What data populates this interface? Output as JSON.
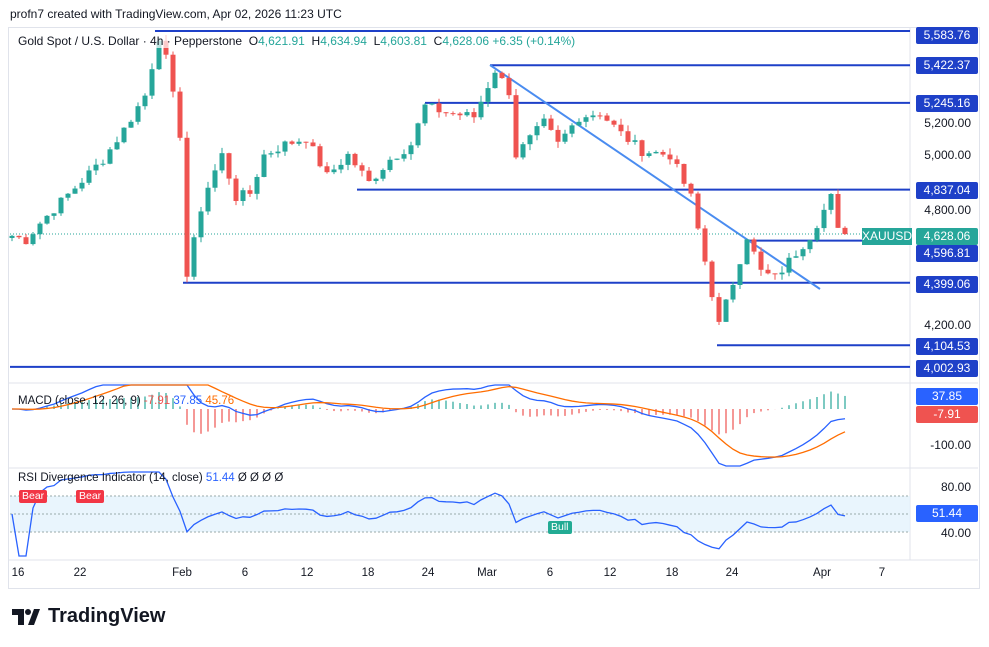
{
  "credit": "profn7 created with TradingView.com, Apr 02, 2026 11:23 UTC",
  "legend": {
    "symbol": "Gold Spot / U.S. Dollar · 4h · Pepperstone",
    "o_label": "O",
    "o": "4,621.91",
    "h_label": "H",
    "h": "4,634.94",
    "l_label": "L",
    "l": "4,603.81",
    "c_label": "C",
    "c": "4,628.06",
    "change": "+6.35 (+0.14%)"
  },
  "price_axis": [
    "5,200.00",
    "5,000.00",
    "4,800.00",
    "4,200.00"
  ],
  "levels": [
    "5,583.76",
    "5,422.37",
    "5,245.16",
    "4,837.04",
    "4,596.81",
    "4,399.06",
    "4,104.53",
    "4,002.93"
  ],
  "current": {
    "symbol": "XAUUSD",
    "price": "4,628.06"
  },
  "macd": {
    "label": "MACD (close, 12, 26, 9)",
    "hist": "-7.91",
    "macd": "37.85",
    "signal": "45.76",
    "axis": "-100.00",
    "tag_macd": "37.85",
    "tag_hist": "-7.91"
  },
  "rsi": {
    "label": "RSI Divergence Indicator (14, close)",
    "value": "51.44",
    "nulls": "Ø Ø Ø Ø",
    "axis80": "80.00",
    "axis40": "40.00",
    "tag": "51.44",
    "bear1": "Bear",
    "bear2": "Bear",
    "bull": "Bull"
  },
  "dates": [
    "16",
    "22",
    "Feb",
    "6",
    "12",
    "18",
    "24",
    "Mar",
    "6",
    "12",
    "18",
    "24",
    "Apr",
    "7"
  ],
  "logo": "TradingView",
  "colors": {
    "up": "#26a69a",
    "down": "#ef5350",
    "level": "#1e40c8",
    "trend": "#4a8cf0"
  },
  "chart_data": {
    "type": "candlestick",
    "symbol": "XAUUSD",
    "timeframe": "4h",
    "path": [
      [
        0,
        4620
      ],
      [
        2,
        4600
      ],
      [
        4,
        4680
      ],
      [
        7,
        4780
      ],
      [
        10,
        4880
      ],
      [
        13,
        4980
      ],
      [
        16,
        5120
      ],
      [
        19,
        5280
      ],
      [
        21,
        5560
      ],
      [
        22,
        5450
      ],
      [
        24,
        5100
      ],
      [
        25,
        4430
      ],
      [
        27,
        4750
      ],
      [
        28,
        4850
      ],
      [
        30,
        5000
      ],
      [
        32,
        4800
      ],
      [
        34,
        4820
      ],
      [
        36,
        5000
      ],
      [
        39,
        5050
      ],
      [
        42,
        5080
      ],
      [
        45,
        4900
      ],
      [
        48,
        5000
      ],
      [
        51,
        4870
      ],
      [
        54,
        4980
      ],
      [
        57,
        5050
      ],
      [
        59,
        5230
      ],
      [
        62,
        5200
      ],
      [
        66,
        5180
      ],
      [
        69,
        5400
      ],
      [
        71,
        5300
      ],
      [
        72,
        5000
      ],
      [
        76,
        5150
      ],
      [
        78,
        5050
      ],
      [
        81,
        5180
      ],
      [
        84,
        5200
      ],
      [
        87,
        5100
      ],
      [
        90,
        5020
      ],
      [
        94,
        5000
      ],
      [
        97,
        4800
      ],
      [
        99,
        4500
      ],
      [
        101,
        4200
      ],
      [
        103,
        4400
      ],
      [
        105,
        4620
      ],
      [
        107,
        4450
      ],
      [
        109,
        4420
      ],
      [
        111,
        4500
      ],
      [
        114,
        4620
      ],
      [
        117,
        4800
      ],
      [
        118,
        4640
      ],
      [
        119,
        4628
      ]
    ]
  }
}
